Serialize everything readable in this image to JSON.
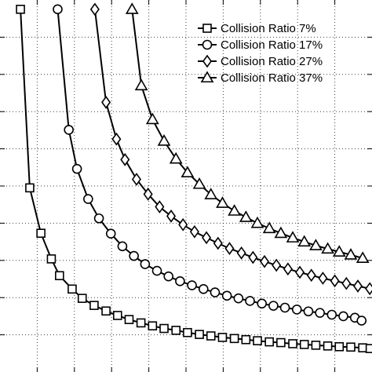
{
  "chart_data": {
    "type": "line",
    "legend_position": "top-right",
    "grid": true,
    "xlim": [
      0,
      100
    ],
    "ylim": [
      0,
      100
    ],
    "series": [
      {
        "name": "Collision Ratio 7%",
        "marker": "square",
        "x": [
          5.5,
          8.0,
          11.0,
          13.8,
          16.0,
          19.4,
          22.1,
          25.3,
          28.5,
          31.6,
          34.7,
          37.9,
          41.0,
          44.1,
          47.3,
          50.4,
          53.6,
          56.7,
          59.8,
          63.0,
          66.1,
          69.2,
          72.4,
          75.5,
          78.7,
          81.8,
          84.9,
          88.1,
          91.2,
          94.3,
          97.5,
          99.5
        ],
        "y": [
          97.5,
          49.5,
          37.3,
          30.4,
          25.9,
          22.3,
          19.8,
          17.9,
          16.4,
          15.2,
          14.1,
          13.2,
          12.4,
          11.7,
          11.2,
          10.6,
          10.1,
          9.7,
          9.3,
          9.0,
          8.7,
          8.4,
          8.1,
          7.9,
          7.6,
          7.4,
          7.2,
          7.0,
          6.8,
          6.7,
          6.5,
          6.3
        ]
      },
      {
        "name": "Collision Ratio 17%",
        "marker": "circle",
        "x": [
          15.5,
          18.5,
          20.7,
          23.7,
          26.6,
          29.8,
          32.9,
          36.0,
          39.0,
          42.2,
          45.3,
          48.4,
          51.6,
          54.7,
          57.8,
          61.0,
          64.1,
          67.2,
          70.4,
          73.5,
          76.6,
          79.8,
          82.9,
          86.0,
          89.2,
          92.3,
          95.4,
          97.2
        ],
        "y": [
          97.5,
          65.1,
          54.6,
          46.5,
          41.3,
          37.2,
          33.8,
          31.2,
          29.0,
          27.2,
          25.7,
          24.4,
          23.3,
          22.3,
          21.4,
          20.5,
          19.8,
          19.1,
          18.4,
          17.8,
          17.3,
          16.8,
          16.3,
          15.9,
          15.4,
          15.0,
          14.6,
          13.8
        ]
      },
      {
        "name": "Collision Ratio 27%",
        "marker": "diamond",
        "x": [
          25.5,
          28.5,
          31.3,
          33.6,
          36.7,
          39.8,
          42.9,
          46.0,
          49.2,
          52.3,
          55.5,
          58.6,
          61.7,
          64.9,
          68.0,
          71.1,
          74.3,
          77.4,
          80.6,
          83.7,
          86.8,
          90.0,
          93.1,
          96.2,
          99.4
        ],
        "y": [
          97.5,
          72.5,
          62.6,
          57.1,
          51.8,
          47.8,
          44.4,
          41.9,
          39.6,
          37.7,
          36.1,
          34.6,
          33.2,
          32.0,
          30.8,
          29.7,
          28.7,
          27.7,
          26.8,
          26.0,
          25.2,
          24.5,
          23.8,
          23.1,
          22.4
        ]
      },
      {
        "name": "Collision Ratio 37%",
        "marker": "triangle",
        "x": [
          35.5,
          38.0,
          41.0,
          44.1,
          47.3,
          50.4,
          53.6,
          56.7,
          59.8,
          63.0,
          66.1,
          69.2,
          72.4,
          75.5,
          78.7,
          81.8,
          84.9,
          88.1,
          91.2,
          94.3,
          97.5
        ],
        "y": [
          97.5,
          77.0,
          67.9,
          62.1,
          57.3,
          53.6,
          50.5,
          47.7,
          45.4,
          43.3,
          41.6,
          40.0,
          38.6,
          37.3,
          36.1,
          35.0,
          34.0,
          33.1,
          32.3,
          31.5,
          30.6
        ]
      }
    ]
  }
}
